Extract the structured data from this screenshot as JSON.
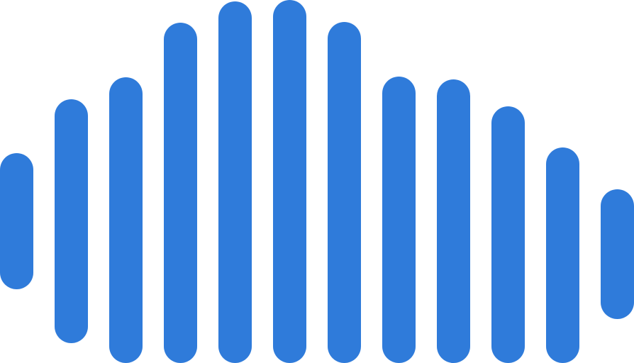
{
  "logo": {
    "icon": "sound-wave-icon",
    "bar_color": "#2F7BDA",
    "bar_count": 12
  }
}
